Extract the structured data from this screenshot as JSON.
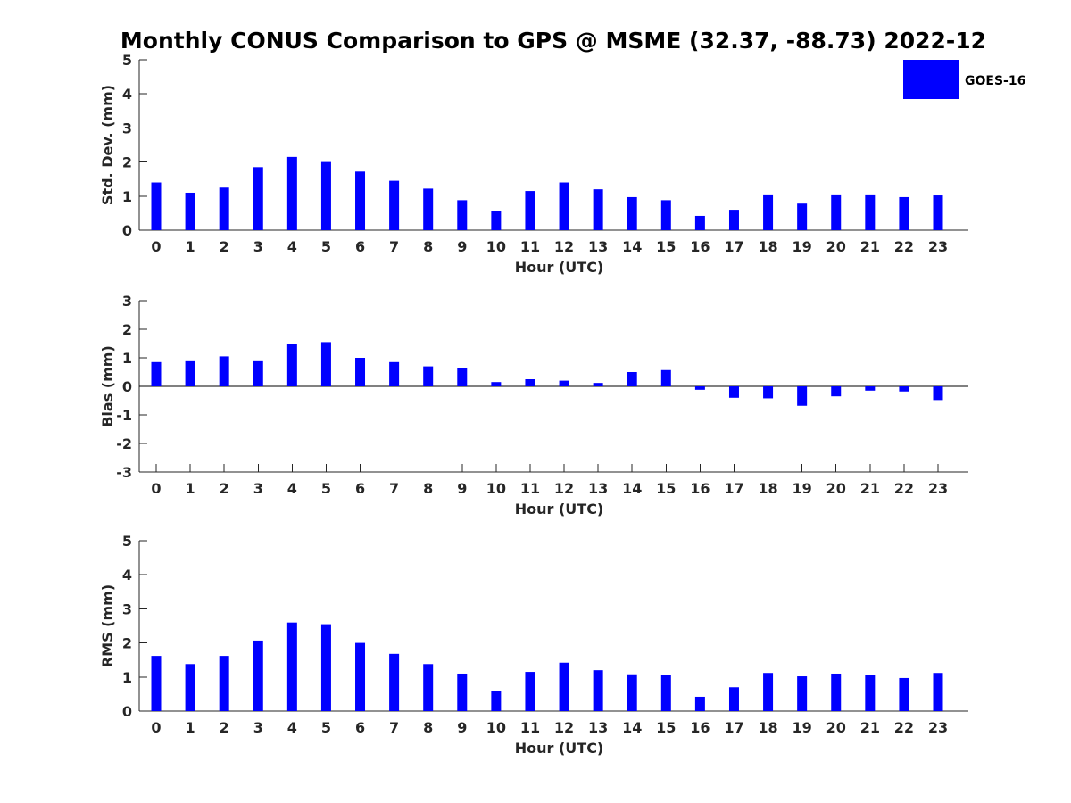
{
  "figure": {
    "title": "Monthly CONUS Comparison to GPS @ MSME (32.37, -88.73) 2022-12"
  },
  "legend": {
    "label": "GOES-16",
    "placement": "top-right",
    "color": "#0000ff"
  },
  "chart_data": [
    {
      "type": "bar",
      "title": "Monthly CONUS Comparison to GPS @ MSME (32.37, -88.73) 2022-12",
      "xlabel": "Hour (UTC)",
      "ylabel": "Std. Dev. (mm)",
      "ylim": [
        0,
        5
      ],
      "yticks": [
        0,
        1,
        2,
        3,
        4,
        5
      ],
      "categories": [
        "0",
        "1",
        "2",
        "3",
        "4",
        "5",
        "6",
        "7",
        "8",
        "9",
        "10",
        "11",
        "12",
        "13",
        "14",
        "15",
        "16",
        "17",
        "18",
        "19",
        "20",
        "21",
        "22",
        "23"
      ],
      "series": [
        {
          "name": "GOES-16",
          "color": "#0000ff",
          "values": [
            1.4,
            1.1,
            1.25,
            1.85,
            2.15,
            2.0,
            1.72,
            1.45,
            1.22,
            0.88,
            0.57,
            1.15,
            1.4,
            1.2,
            0.97,
            0.88,
            0.42,
            0.6,
            1.05,
            0.78,
            1.05,
            1.05,
            0.97,
            1.02
          ]
        }
      ]
    },
    {
      "type": "bar",
      "xlabel": "Hour (UTC)",
      "ylabel": "Bias (mm)",
      "ylim": [
        -3,
        3
      ],
      "yticks": [
        -3,
        -2,
        -1,
        0,
        1,
        2,
        3
      ],
      "categories": [
        "0",
        "1",
        "2",
        "3",
        "4",
        "5",
        "6",
        "7",
        "8",
        "9",
        "10",
        "11",
        "12",
        "13",
        "14",
        "15",
        "16",
        "17",
        "18",
        "19",
        "20",
        "21",
        "22",
        "23"
      ],
      "series": [
        {
          "name": "GOES-16",
          "color": "#0000ff",
          "values": [
            0.85,
            0.88,
            1.05,
            0.88,
            1.48,
            1.55,
            1.0,
            0.85,
            0.7,
            0.65,
            0.15,
            0.25,
            0.2,
            0.12,
            0.5,
            0.57,
            -0.12,
            -0.4,
            -0.42,
            -0.68,
            -0.35,
            -0.15,
            -0.18,
            -0.48
          ]
        }
      ]
    },
    {
      "type": "bar",
      "xlabel": "Hour (UTC)",
      "ylabel": "RMS (mm)",
      "ylim": [
        0,
        5
      ],
      "yticks": [
        0,
        1,
        2,
        3,
        4,
        5
      ],
      "categories": [
        "0",
        "1",
        "2",
        "3",
        "4",
        "5",
        "6",
        "7",
        "8",
        "9",
        "10",
        "11",
        "12",
        "13",
        "14",
        "15",
        "16",
        "17",
        "18",
        "19",
        "20",
        "21",
        "22",
        "23"
      ],
      "series": [
        {
          "name": "GOES-16",
          "color": "#0000ff",
          "values": [
            1.62,
            1.38,
            1.62,
            2.07,
            2.6,
            2.55,
            2.0,
            1.68,
            1.38,
            1.1,
            0.6,
            1.15,
            1.42,
            1.2,
            1.08,
            1.05,
            0.42,
            0.7,
            1.12,
            1.02,
            1.1,
            1.05,
            0.97,
            1.12
          ]
        }
      ]
    }
  ]
}
